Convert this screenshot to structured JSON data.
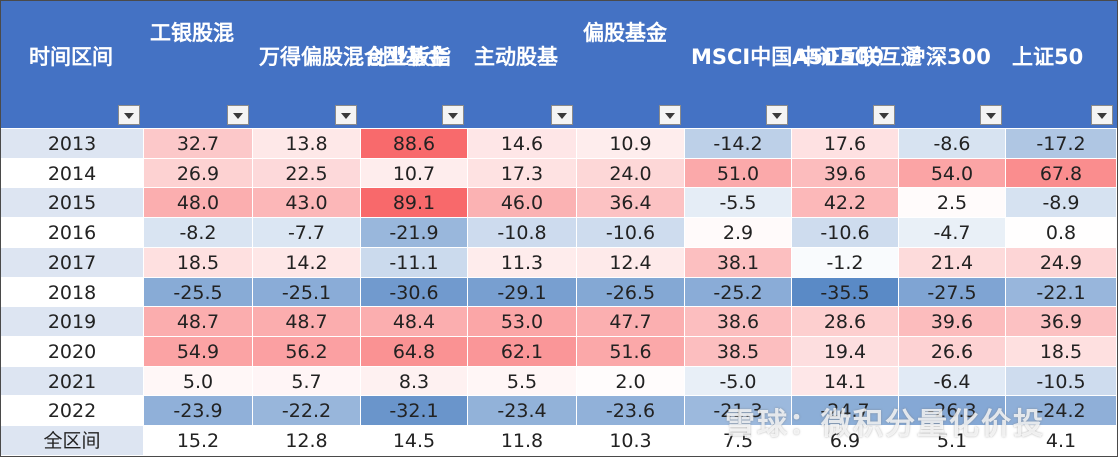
{
  "chart_data": {
    "type": "table",
    "columns": [
      "时间区间",
      "工银股混",
      "万得偏股混合型基金",
      "创业板指",
      "主动股基",
      "偏股基金",
      "MSCI中国A50互联互通",
      "中证500",
      "沪深300",
      "上证50"
    ],
    "rows": [
      {
        "period": "2013",
        "values": [
          32.7,
          13.8,
          88.6,
          14.6,
          10.9,
          -14.2,
          17.6,
          -8.6,
          -17.2
        ]
      },
      {
        "period": "2014",
        "values": [
          26.9,
          22.5,
          10.7,
          17.3,
          24.0,
          51.0,
          39.6,
          54.0,
          67.8
        ]
      },
      {
        "period": "2015",
        "values": [
          48.0,
          43.0,
          89.1,
          46.0,
          36.4,
          -5.5,
          42.2,
          2.5,
          -8.9
        ]
      },
      {
        "period": "2016",
        "values": [
          -8.2,
          -7.7,
          -21.9,
          -10.8,
          -10.6,
          2.9,
          -10.6,
          -4.7,
          0.8
        ]
      },
      {
        "period": "2017",
        "values": [
          18.5,
          14.2,
          -11.1,
          11.3,
          12.4,
          38.1,
          -1.2,
          21.4,
          24.9
        ]
      },
      {
        "period": "2018",
        "values": [
          -25.5,
          -25.1,
          -30.6,
          -29.1,
          -26.5,
          -25.2,
          -35.5,
          -27.5,
          -22.1
        ]
      },
      {
        "period": "2019",
        "values": [
          48.7,
          48.7,
          48.4,
          53.0,
          47.7,
          38.6,
          28.6,
          39.6,
          36.9
        ]
      },
      {
        "period": "2020",
        "values": [
          54.9,
          56.2,
          64.8,
          62.1,
          51.6,
          38.5,
          19.4,
          26.6,
          18.5
        ]
      },
      {
        "period": "2021",
        "values": [
          5.0,
          5.7,
          8.3,
          5.5,
          2.0,
          -5.0,
          14.1,
          -6.4,
          -10.5
        ]
      },
      {
        "period": "2022",
        "values": [
          -23.9,
          -22.2,
          -32.1,
          -23.4,
          -23.6,
          -21.3,
          -24.7,
          -26.3,
          -24.2
        ]
      },
      {
        "period": "全区间",
        "values": [
          15.2,
          12.8,
          14.5,
          11.8,
          10.3,
          7.5,
          6.9,
          5.1,
          4.1
        ]
      }
    ],
    "colors": {
      "header_bg": "#4472c4",
      "header_text": "#ffffff",
      "positive_max": "#f8696b",
      "neutral": "#ffffff",
      "negative_max": "#5a8ac6",
      "label_bg": "#dde5f2"
    }
  },
  "watermark": "雪球：微积分量化价投"
}
